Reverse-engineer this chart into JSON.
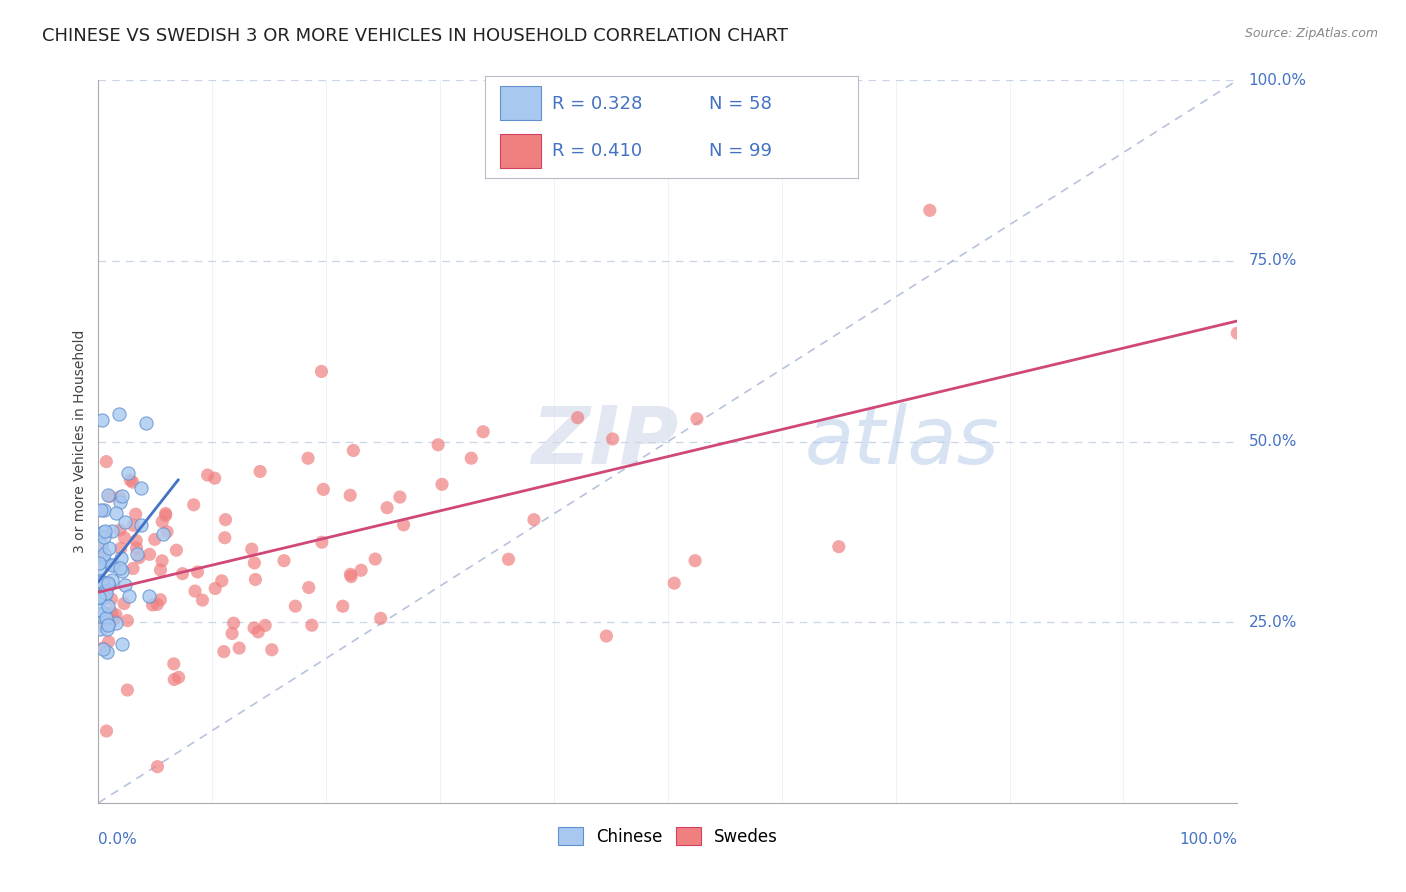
{
  "title": "CHINESE VS SWEDISH 3 OR MORE VEHICLES IN HOUSEHOLD CORRELATION CHART",
  "source_text": "Source: ZipAtlas.com",
  "ylabel": "3 or more Vehicles in Household",
  "legend_chinese_R": "R = 0.328",
  "legend_chinese_N": "N = 58",
  "legend_swedes_R": "R = 0.410",
  "legend_swedes_N": "N = 99",
  "chinese_color": "#a8c8f0",
  "swedes_color": "#f08080",
  "chinese_edge_color": "#6090d0",
  "swedes_edge_color": "#d04060",
  "chinese_line_color": "#4472c4",
  "swedes_line_color": "#d04878",
  "ref_line_color": "#b0bcd8",
  "watermark_zip": "ZIP",
  "watermark_atlas": "atlas",
  "background_color": "#ffffff",
  "grid_color": "#c8d4e8",
  "title_fontsize": 13,
  "axis_tick_fontsize": 11,
  "legend_fontsize": 13,
  "chinese_seed": 77,
  "swedes_seed": 42,
  "n_chinese": 58,
  "n_swedes": 99
}
